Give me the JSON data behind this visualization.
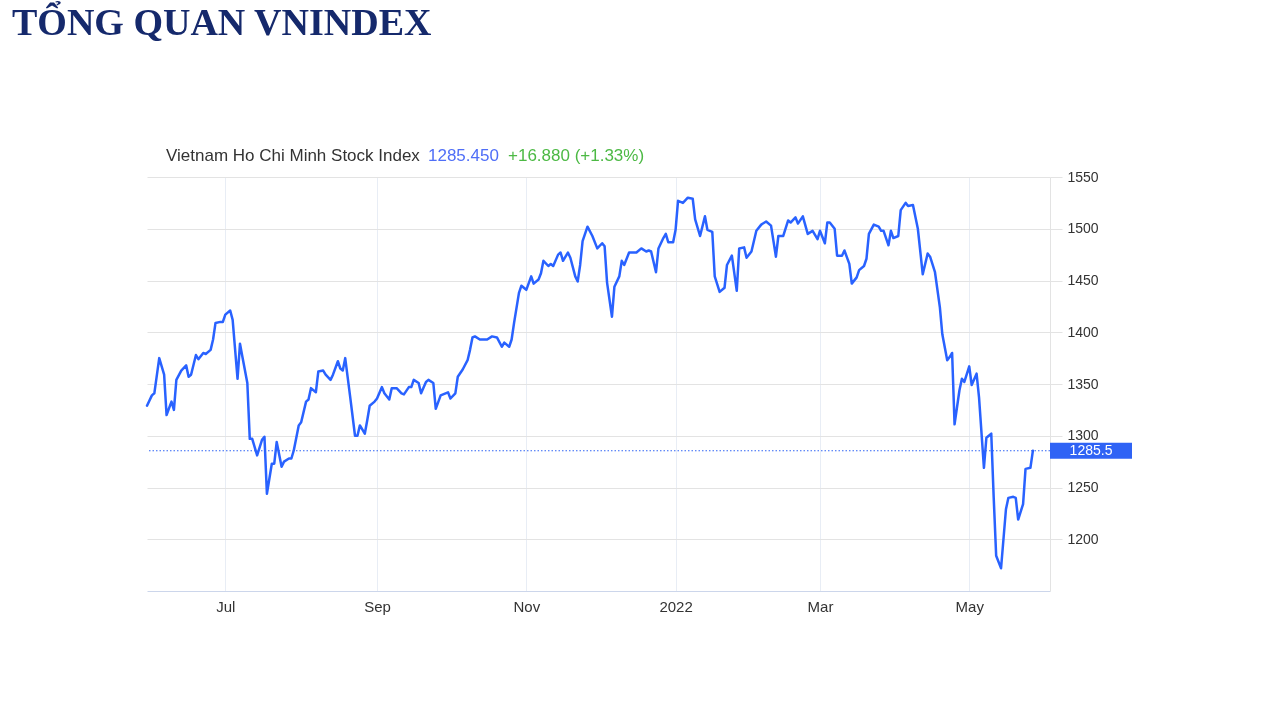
{
  "chart_data": {
    "type": "line",
    "title": "TỔNG QUAN VNINDEX",
    "subtitle": "Vietnam Ho Chi Minh Stock Index",
    "annotations": [
      "1285.450",
      "+16.880 (+1.33%)"
    ],
    "x": [
      "2021-05-30",
      "2021-06-01",
      "2021-06-02",
      "2021-06-04",
      "2021-06-06",
      "2021-06-07",
      "2021-06-09",
      "2021-06-10",
      "2021-06-11",
      "2021-06-13",
      "2021-06-15",
      "2021-06-16",
      "2021-06-17",
      "2021-06-19",
      "2021-06-20",
      "2021-06-22",
      "2021-06-23",
      "2021-06-25",
      "2021-06-26",
      "2021-06-27",
      "2021-06-29",
      "2021-06-30",
      "2021-07-01",
      "2021-07-03",
      "2021-07-04",
      "2021-07-06",
      "2021-07-07",
      "2021-07-08",
      "2021-07-10",
      "2021-07-11",
      "2021-07-12",
      "2021-07-14",
      "2021-07-16",
      "2021-07-17",
      "2021-07-18",
      "2021-07-20",
      "2021-07-21",
      "2021-07-22",
      "2021-07-24",
      "2021-07-25",
      "2021-07-27",
      "2021-07-28",
      "2021-07-29",
      "2021-07-31",
      "2021-08-01",
      "2021-08-03",
      "2021-08-04",
      "2021-08-05",
      "2021-08-07",
      "2021-08-08",
      "2021-08-10",
      "2021-08-11",
      "2021-08-13",
      "2021-08-14",
      "2021-08-16",
      "2021-08-17",
      "2021-08-18",
      "2021-08-19",
      "2021-08-21",
      "2021-08-23",
      "2021-08-24",
      "2021-08-25",
      "2021-08-27",
      "2021-08-28",
      "2021-08-29",
      "2021-08-31",
      "2021-09-01",
      "2021-09-03",
      "2021-09-04",
      "2021-09-06",
      "2021-09-07",
      "2021-09-09",
      "2021-09-11",
      "2021-09-12",
      "2021-09-14",
      "2021-09-15",
      "2021-09-16",
      "2021-09-18",
      "2021-09-19",
      "2021-09-21",
      "2021-09-22",
      "2021-09-24",
      "2021-09-25",
      "2021-09-27",
      "2021-09-29",
      "2021-09-30",
      "2021-10-01",
      "2021-10-03",
      "2021-10-04",
      "2021-10-06",
      "2021-10-08",
      "2021-10-09",
      "2021-10-10",
      "2021-10-11",
      "2021-10-13",
      "2021-10-16",
      "2021-10-18",
      "2021-10-20",
      "2021-10-22",
      "2021-10-23",
      "2021-10-25",
      "2021-10-26",
      "2021-10-27",
      "2021-10-29",
      "2021-10-30",
      "2021-11-01",
      "2021-11-03",
      "2021-11-04",
      "2021-11-06",
      "2021-11-07",
      "2021-11-08",
      "2021-11-10",
      "2021-11-11",
      "2021-11-12",
      "2021-11-14",
      "2021-11-15",
      "2021-11-16",
      "2021-11-18",
      "2021-11-19",
      "2021-11-21",
      "2021-11-22",
      "2021-11-23",
      "2021-11-24",
      "2021-11-26",
      "2021-11-28",
      "2021-11-30",
      "2021-12-02",
      "2021-12-03",
      "2021-12-04",
      "2021-12-06",
      "2021-12-07",
      "2021-12-09",
      "2021-12-10",
      "2021-12-11",
      "2021-12-13",
      "2021-12-15",
      "2021-12-16",
      "2021-12-18",
      "2021-12-20",
      "2021-12-21",
      "2021-12-22",
      "2021-12-24",
      "2021-12-25",
      "2021-12-27",
      "2021-12-28",
      "2021-12-29",
      "2021-12-31",
      "2022-01-01",
      "2022-01-02",
      "2022-01-04",
      "2022-01-06",
      "2022-01-08",
      "2022-01-09",
      "2022-01-11",
      "2022-01-13",
      "2022-01-14",
      "2022-01-16",
      "2022-01-17",
      "2022-01-19",
      "2022-01-21",
      "2022-01-22",
      "2022-01-24",
      "2022-01-26",
      "2022-01-27",
      "2022-01-29",
      "2022-01-30",
      "2022-02-01",
      "2022-02-03",
      "2022-02-05",
      "2022-02-07",
      "2022-02-09",
      "2022-02-11",
      "2022-02-12",
      "2022-02-14",
      "2022-02-16",
      "2022-02-17",
      "2022-02-19",
      "2022-02-20",
      "2022-02-22",
      "2022-02-24",
      "2022-02-26",
      "2022-02-28",
      "2022-03-01",
      "2022-03-03",
      "2022-03-04",
      "2022-03-05",
      "2022-03-07",
      "2022-03-08",
      "2022-03-10",
      "2022-03-11",
      "2022-03-13",
      "2022-03-14",
      "2022-03-16",
      "2022-03-17",
      "2022-03-19",
      "2022-03-20",
      "2022-03-21",
      "2022-03-23",
      "2022-03-25",
      "2022-03-26",
      "2022-03-27",
      "2022-03-29",
      "2022-03-30",
      "2022-03-31",
      "2022-04-02",
      "2022-04-03",
      "2022-04-05",
      "2022-04-06",
      "2022-04-08",
      "2022-04-10",
      "2022-04-12",
      "2022-04-14",
      "2022-04-15",
      "2022-04-17",
      "2022-04-19",
      "2022-04-20",
      "2022-04-22",
      "2022-04-23",
      "2022-04-24",
      "2022-04-25",
      "2022-04-27",
      "2022-04-28",
      "2022-04-29",
      "2022-05-01",
      "2022-05-02",
      "2022-05-04",
      "2022-05-05",
      "2022-05-07",
      "2022-05-08",
      "2022-05-10",
      "2022-05-11",
      "2022-05-12",
      "2022-05-14",
      "2022-05-16",
      "2022-05-17",
      "2022-05-19",
      "2022-05-20",
      "2022-05-21",
      "2022-05-23",
      "2022-05-24",
      "2022-05-26",
      "2022-05-27"
    ],
    "series": [
      {
        "color": "#2962ff",
        "values": [
          1329,
          1339,
          1341,
          1375,
          1359,
          1320,
          1333,
          1325,
          1354,
          1363,
          1368,
          1357,
          1359,
          1378,
          1374,
          1380,
          1379,
          1383,
          1393,
          1409,
          1410,
          1410,
          1417,
          1421,
          1412,
          1355,
          1389,
          1376,
          1351,
          1297,
          1297,
          1281,
          1296,
          1299,
          1244,
          1273,
          1273,
          1294,
          1270,
          1275,
          1278,
          1278,
          1286,
          1310,
          1313,
          1333,
          1335,
          1346,
          1342,
          1362,
          1363,
          1359,
          1354,
          1359,
          1372,
          1365,
          1363,
          1375,
          1338,
          1300,
          1300,
          1310,
          1302,
          1315,
          1329,
          1333,
          1336,
          1347,
          1341,
          1335,
          1346,
          1346,
          1341,
          1340,
          1347,
          1347,
          1354,
          1351,
          1341,
          1352,
          1354,
          1351,
          1326,
          1339,
          1341,
          1342,
          1336,
          1341,
          1357,
          1364,
          1373,
          1383,
          1395,
          1396,
          1393,
          1393,
          1396,
          1395,
          1386,
          1390,
          1386,
          1393,
          1409,
          1438,
          1445,
          1441,
          1454,
          1447,
          1451,
          1457,
          1469,
          1464,
          1466,
          1464,
          1475,
          1477,
          1469,
          1477,
          1472,
          1454,
          1449,
          1465,
          1488,
          1502,
          1493,
          1481,
          1486,
          1483,
          1448,
          1415,
          1444,
          1454,
          1469,
          1465,
          1477,
          1477,
          1477,
          1481,
          1478,
          1479,
          1478,
          1458,
          1481,
          1491,
          1495,
          1487,
          1487,
          1499,
          1527,
          1525,
          1530,
          1529,
          1509,
          1493,
          1512,
          1499,
          1497,
          1454,
          1439,
          1443,
          1465,
          1474,
          1440,
          1481,
          1482,
          1472,
          1478,
          1498,
          1504,
          1507,
          1503,
          1473,
          1493,
          1493,
          1508,
          1506,
          1511,
          1505,
          1512,
          1495,
          1498,
          1490,
          1498,
          1486,
          1506,
          1506,
          1500,
          1474,
          1474,
          1479,
          1466,
          1447,
          1453,
          1460,
          1464,
          1471,
          1495,
          1504,
          1502,
          1498,
          1498,
          1484,
          1498,
          1491,
          1493,
          1518,
          1525,
          1522,
          1523,
          1500,
          1456,
          1476,
          1473,
          1458,
          1424,
          1398,
          1373,
          1376,
          1380,
          1311,
          1344,
          1355,
          1352,
          1367,
          1349,
          1360,
          1337,
          1269,
          1298,
          1302,
          1240,
          1184,
          1172,
          1229,
          1240,
          1241,
          1240,
          1219,
          1234,
          1268,
          1269,
          1285.45
        ]
      }
    ],
    "xlim": [
      "2021-05-30",
      "2022-06-03"
    ],
    "xticks": [
      {
        "value": "2021-07-01",
        "label": "Jul"
      },
      {
        "value": "2021-09-01",
        "label": "Sep"
      },
      {
        "value": "2021-11-01",
        "label": "Nov"
      },
      {
        "value": "2022-01-01",
        "label": "2022"
      },
      {
        "value": "2022-03-01",
        "label": "Mar"
      },
      {
        "value": "2022-05-01",
        "label": "May"
      }
    ],
    "ylim": [
      1150,
      1550
    ],
    "yticks": [
      1200,
      1250,
      1300,
      1350,
      1400,
      1450,
      1500,
      1550
    ],
    "grid": true,
    "ref_lines": [
      {
        "axis": "y",
        "value": 1285.5,
        "label": "1285.5",
        "color": "#2f63f5",
        "line_style": "dotted"
      }
    ]
  }
}
